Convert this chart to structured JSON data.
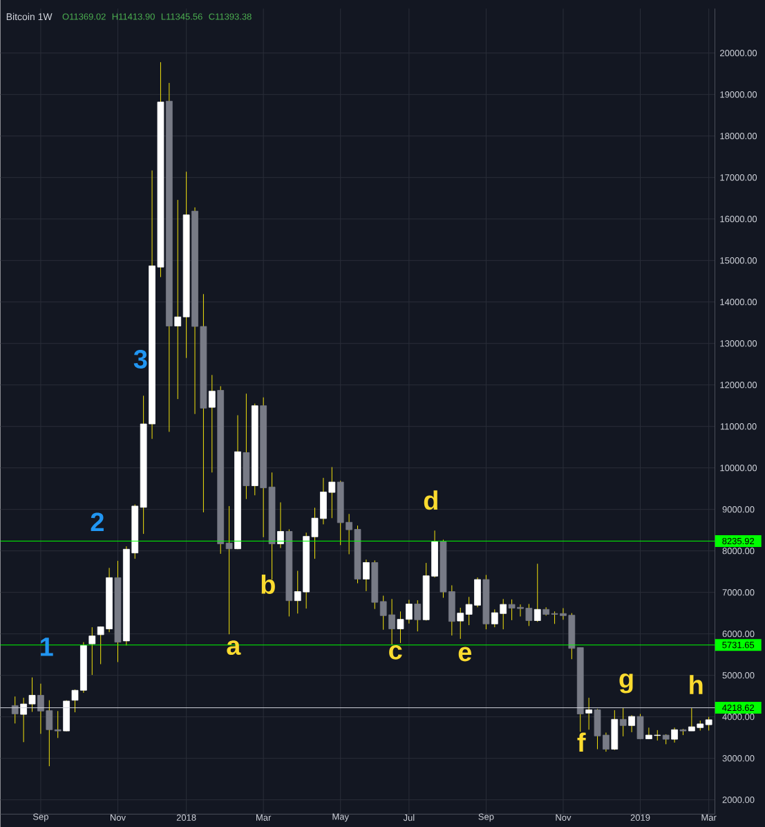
{
  "chart_data": {
    "type": "candlestick",
    "title": "Bitcoin 1W",
    "annotations": [
      "O11369.02",
      "H11413.90",
      "L11345.56",
      "C11393.38",
      "1",
      "2",
      "3",
      "a",
      "b",
      "c",
      "d",
      "e",
      "f",
      "g",
      "h"
    ],
    "x": [
      "2017-08-14",
      "2017-08-21",
      "2017-08-28",
      "2017-09-04",
      "2017-09-11",
      "2017-09-18",
      "2017-09-25",
      "2017-10-02",
      "2017-10-09",
      "2017-10-16",
      "2017-10-23",
      "2017-10-30",
      "2017-11-06",
      "2017-11-13",
      "2017-11-20",
      "2017-11-27",
      "2017-12-04",
      "2017-12-11",
      "2017-12-18",
      "2017-12-25",
      "2018-01-01",
      "2018-01-08",
      "2018-01-15",
      "2018-01-22",
      "2018-01-29",
      "2018-02-05",
      "2018-02-12",
      "2018-02-19",
      "2018-02-26",
      "2018-03-05",
      "2018-03-12",
      "2018-03-19",
      "2018-03-26",
      "2018-04-02",
      "2018-04-09",
      "2018-04-16",
      "2018-04-23",
      "2018-04-30",
      "2018-05-07",
      "2018-05-14",
      "2018-05-21",
      "2018-05-28",
      "2018-06-04",
      "2018-06-11",
      "2018-06-18",
      "2018-06-25",
      "2018-07-02",
      "2018-07-09",
      "2018-07-16",
      "2018-07-23",
      "2018-07-30",
      "2018-08-06",
      "2018-08-13",
      "2018-08-20",
      "2018-08-27",
      "2018-09-03",
      "2018-09-10",
      "2018-09-17",
      "2018-09-24",
      "2018-10-01",
      "2018-10-08",
      "2018-10-15",
      "2018-10-22",
      "2018-10-29",
      "2018-11-05",
      "2018-11-12",
      "2018-11-19",
      "2018-11-26",
      "2018-12-03",
      "2018-12-10",
      "2018-12-17",
      "2018-12-24",
      "2018-12-31",
      "2019-01-07",
      "2019-01-14",
      "2019-01-21",
      "2019-01-28",
      "2019-02-04",
      "2019-02-11",
      "2019-02-18",
      "2019-02-25",
      "2019-03-04"
    ],
    "ohlc": [
      [
        4272,
        4490,
        3840,
        4072
      ],
      [
        4060,
        4460,
        3390,
        4310
      ],
      [
        4310,
        4950,
        4120,
        4520
      ],
      [
        4520,
        4800,
        3590,
        4140
      ],
      [
        4150,
        4400,
        2810,
        3690
      ],
      [
        3690,
        4140,
        3490,
        3660
      ],
      [
        3660,
        4400,
        3650,
        4380
      ],
      [
        4400,
        4660,
        4110,
        4640
      ],
      [
        4640,
        5800,
        4580,
        5720
      ],
      [
        5760,
        6160,
        5010,
        5950
      ],
      [
        5980,
        6180,
        5270,
        6170
      ],
      [
        6120,
        7590,
        6040,
        7355
      ],
      [
        7355,
        7760,
        5320,
        5800
      ],
      [
        5830,
        8110,
        5720,
        8040
      ],
      [
        7950,
        9120,
        7810,
        9080
      ],
      [
        9050,
        11740,
        8410,
        11060
      ],
      [
        11060,
        17170,
        10700,
        14870
      ],
      [
        14840,
        19780,
        14600,
        18820
      ],
      [
        18840,
        19280,
        10870,
        13420
      ],
      [
        13420,
        16460,
        11660,
        13640
      ],
      [
        13640,
        17140,
        12650,
        16100
      ],
      [
        16190,
        16280,
        11300,
        13410
      ],
      [
        13410,
        14190,
        8930,
        11440
      ],
      [
        11460,
        12240,
        9890,
        11850
      ],
      [
        11870,
        11970,
        7930,
        8170
      ],
      [
        8190,
        9080,
        5990,
        8050
      ],
      [
        8050,
        11270,
        8040,
        10390
      ],
      [
        10370,
        11790,
        9250,
        9570
      ],
      [
        9570,
        11550,
        9340,
        11500
      ],
      [
        11500,
        11700,
        8330,
        9520
      ],
      [
        9540,
        9890,
        7310,
        8170
      ],
      [
        8170,
        9170,
        8070,
        8470
      ],
      [
        8470,
        8520,
        6420,
        6800
      ],
      [
        6800,
        7520,
        6490,
        7020
      ],
      [
        7010,
        8440,
        6610,
        8350
      ],
      [
        8340,
        9040,
        7810,
        8790
      ],
      [
        8780,
        9760,
        8640,
        9420
      ],
      [
        9410,
        10020,
        8790,
        9660
      ],
      [
        9660,
        9690,
        8140,
        8680
      ],
      [
        8690,
        8890,
        7920,
        8510
      ],
      [
        8520,
        8610,
        7220,
        7320
      ],
      [
        7320,
        7790,
        7030,
        7720
      ],
      [
        7720,
        7770,
        6600,
        6760
      ],
      [
        6780,
        6920,
        6100,
        6440
      ],
      [
        6460,
        6840,
        5740,
        6120
      ],
      [
        6120,
        6540,
        5780,
        6350
      ],
      [
        6350,
        6820,
        6250,
        6720
      ],
      [
        6720,
        6810,
        6060,
        6340
      ],
      [
        6340,
        7710,
        6320,
        7400
      ],
      [
        7390,
        8490,
        7360,
        8220
      ],
      [
        8220,
        8270,
        6870,
        7010
      ],
      [
        7020,
        7170,
        5960,
        6300
      ],
      [
        6310,
        6630,
        5880,
        6500
      ],
      [
        6470,
        6890,
        6210,
        6710
      ],
      [
        6690,
        7360,
        6640,
        7310
      ],
      [
        7310,
        7420,
        6110,
        6240
      ],
      [
        6240,
        6590,
        6160,
        6510
      ],
      [
        6490,
        6840,
        6110,
        6710
      ],
      [
        6710,
        6830,
        6330,
        6620
      ],
      [
        6640,
        6710,
        6420,
        6610
      ],
      [
        6620,
        6720,
        6190,
        6320
      ],
      [
        6320,
        7690,
        6290,
        6590
      ],
      [
        6590,
        6640,
        6440,
        6470
      ],
      [
        6490,
        6540,
        6240,
        6470
      ],
      [
        6490,
        6620,
        6340,
        6440
      ],
      [
        6450,
        6500,
        5390,
        5650
      ],
      [
        5670,
        5670,
        3640,
        4070
      ],
      [
        4090,
        4460,
        3690,
        4170
      ],
      [
        4170,
        4190,
        3220,
        3540
      ],
      [
        3560,
        3620,
        3160,
        3220
      ],
      [
        3220,
        4160,
        3200,
        3940
      ],
      [
        3940,
        4210,
        3530,
        3790
      ],
      [
        3790,
        4040,
        3630,
        4010
      ],
      [
        4010,
        4070,
        3460,
        3470
      ],
      [
        3470,
        3740,
        3460,
        3560
      ],
      [
        3550,
        3680,
        3430,
        3560
      ],
      [
        3560,
        3580,
        3340,
        3460
      ],
      [
        3460,
        3740,
        3380,
        3690
      ],
      [
        3690,
        3710,
        3560,
        3660
      ],
      [
        3660,
        4210,
        3660,
        3760
      ],
      [
        3740,
        3910,
        3670,
        3830
      ],
      [
        3810,
        4000,
        3670,
        3930
      ]
    ],
    "colors": [
      "#787b86",
      "#ffffff",
      "#ffffff",
      "#787b86",
      "#787b86",
      "#787b86",
      "#ffffff",
      "#ffffff",
      "#ffffff",
      "#ffffff",
      "#ffffff",
      "#ffffff",
      "#787b86",
      "#ffffff",
      "#ffffff",
      "#ffffff",
      "#ffffff",
      "#ffffff",
      "#787b86",
      "#ffffff",
      "#ffffff",
      "#787b86",
      "#787b86",
      "#ffffff",
      "#787b86",
      "#787b86",
      "#ffffff",
      "#787b86",
      "#ffffff",
      "#787b86",
      "#787b86",
      "#ffffff",
      "#787b86",
      "#ffffff",
      "#ffffff",
      "#ffffff",
      "#ffffff",
      "#ffffff",
      "#787b86",
      "#787b86",
      "#787b86",
      "#ffffff",
      "#787b86",
      "#787b86",
      "#787b86",
      "#ffffff",
      "#ffffff",
      "#787b86",
      "#ffffff",
      "#ffffff",
      "#787b86",
      "#787b86",
      "#ffffff",
      "#ffffff",
      "#ffffff",
      "#787b86",
      "#ffffff",
      "#ffffff",
      "#787b86",
      "#787b86",
      "#787b86",
      "#ffffff",
      "#787b86",
      "#787b86",
      "#787b86",
      "#787b86",
      "#787b86",
      "#ffffff",
      "#787b86",
      "#787b86",
      "#ffffff",
      "#787b86",
      "#ffffff",
      "#787b86",
      "#ffffff",
      "#ffffff",
      "#787b86",
      "#ffffff",
      "#787b86",
      "#ffffff",
      "#ffffff",
      "#ffffff"
    ],
    "xlim": [
      "2017-08-02",
      "2019-03-09"
    ],
    "xticks": [
      {
        "value": "2017-09-04",
        "label": "Sep"
      },
      {
        "value": "2017-11-06",
        "label": "Nov"
      },
      {
        "value": "2018-01-01",
        "label": "2018"
      },
      {
        "value": "2018-03-05",
        "label": "Mar"
      },
      {
        "value": "2018-05-07",
        "label": "May"
      },
      {
        "value": "2018-07-02",
        "label": "Jul"
      },
      {
        "value": "2018-09-03",
        "label": "Sep"
      },
      {
        "value": "2018-11-05",
        "label": "Nov"
      },
      {
        "value": "2019-01-07",
        "label": "2019"
      },
      {
        "value": "2019-03-04",
        "label": "Mar"
      }
    ],
    "ylim": [
      1655,
      21072
    ],
    "yticks": [
      {
        "value": 2000,
        "label": "2000.00"
      },
      {
        "value": 3000,
        "label": "3000.00"
      },
      {
        "value": 4000,
        "label": "4000.00"
      },
      {
        "value": 5000,
        "label": "5000.00"
      },
      {
        "value": 6000,
        "label": "6000.00"
      },
      {
        "value": 7000,
        "label": "7000.00"
      },
      {
        "value": 8000,
        "label": "8000.00"
      },
      {
        "value": 9000,
        "label": "9000.00"
      },
      {
        "value": 10000,
        "label": "10000.00"
      },
      {
        "value": 11000,
        "label": "11000.00"
      },
      {
        "value": 12000,
        "label": "12000.00"
      },
      {
        "value": 13000,
        "label": "13000.00"
      },
      {
        "value": 14000,
        "label": "14000.00"
      },
      {
        "value": 15000,
        "label": "15000.00"
      },
      {
        "value": 16000,
        "label": "16000.00"
      },
      {
        "value": 17000,
        "label": "17000.00"
      },
      {
        "value": 18000,
        "label": "18000.00"
      },
      {
        "value": 19000,
        "label": "19000.00"
      },
      {
        "value": 20000,
        "label": "20000.00"
      }
    ],
    "grid": true,
    "ref_lines": [
      {
        "axis": "y",
        "value": 8235.92,
        "label": "8235.92",
        "color": "#00ff00",
        "line_style": "solid"
      },
      {
        "axis": "y",
        "value": 5731.65,
        "label": "5731.65",
        "color": "#00ff00",
        "line_style": "solid"
      },
      {
        "axis": "y",
        "value": 4218.62,
        "label": "4218.62",
        "color": "#d1d4dc",
        "line_style": "solid"
      }
    ]
  }
}
